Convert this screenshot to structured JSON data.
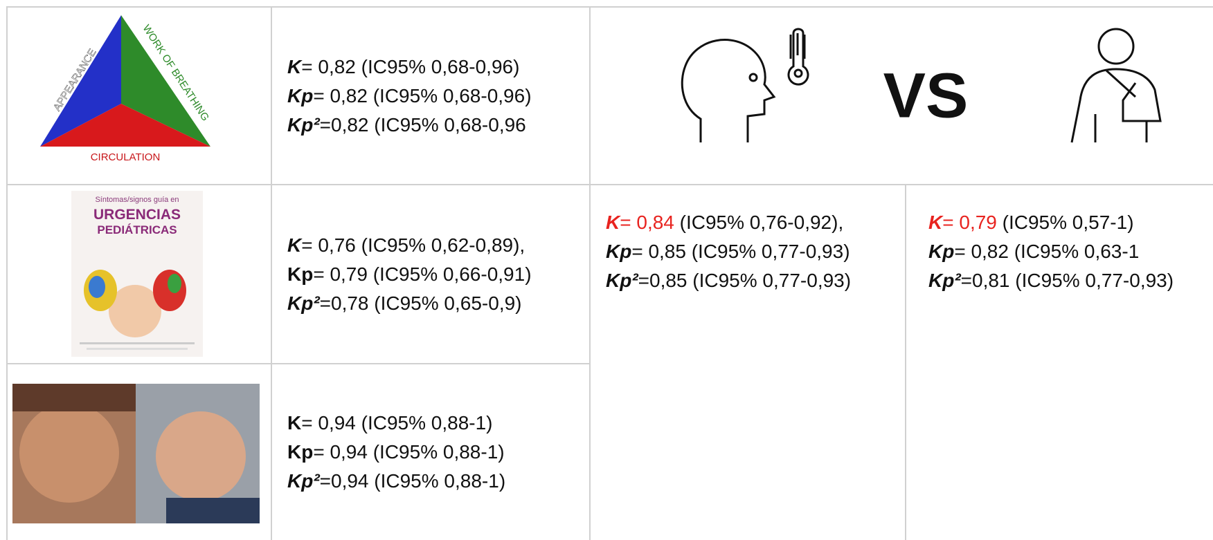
{
  "triangle": {
    "left": "APPEARANCE",
    "right": "WORK OF BREATHING",
    "bottom": "CIRCULATION"
  },
  "book": {
    "subtitle": "Síntomas/signos guía en",
    "title_1": "URGENCIAS",
    "title_2": "PEDIÁTRICAS"
  },
  "vs": "VS",
  "stats": {
    "row_1": [
      [
        "K",
        "= 0,82 (IC95% 0,68-0,96)"
      ],
      [
        "Kp",
        "= 0,82 (IC95% 0,68-0,96)"
      ],
      [
        "Kp²",
        "=0,82 (IC95% 0,68-0,96"
      ]
    ],
    "row_2": [
      [
        "K",
        "= 0,76 (IC95% 0,62-0,89),"
      ],
      [
        "Kp",
        "= 0,79 (IC95% 0,66-0,91)"
      ],
      [
        "Kp²",
        "=0,78 (IC95% 0,65-0,9)"
      ]
    ],
    "row_3": [
      [
        "K",
        "= 0,94 (IC95% 0,88-1)"
      ],
      [
        "Kp",
        "= 0,94 (IC95% 0,88-1)"
      ],
      [
        "Kp²",
        "=0,94 (IC95% 0,88-1)"
      ]
    ],
    "fever": [
      [
        "K",
        "= 0,84",
        " (IC95% 0,76-0,92),"
      ],
      [
        "Kp",
        "= 0,85 (IC95% 0,77-0,93)"
      ],
      [
        "Kp²",
        "=0,85 (IC95% 0,77-0,93)"
      ]
    ],
    "trauma": [
      [
        "K",
        "= 0,79",
        " (IC95% 0,57-1)"
      ],
      [
        "Kp",
        "= 0,82 (IC95% 0,63-1"
      ],
      [
        "Kp²",
        "=0,81 (IC95% 0,77-0,93)"
      ]
    ]
  }
}
